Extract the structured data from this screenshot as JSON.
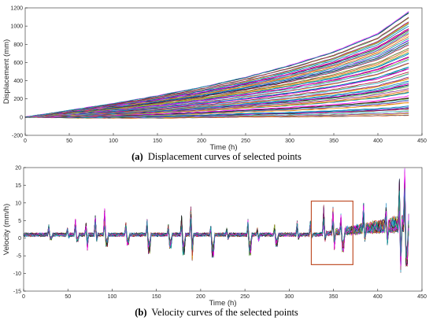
{
  "chart_data": [
    {
      "type": "line",
      "title": "",
      "caption": {
        "tag": "(a)",
        "text": "Displacement curves of selected points"
      },
      "xlabel": "Time (h)",
      "ylabel": "Displacement (mm)",
      "xlim": [
        0,
        450
      ],
      "ylim": [
        -200,
        1200
      ],
      "xticks": [
        0,
        50,
        100,
        150,
        200,
        250,
        300,
        350,
        400,
        450
      ],
      "yticks": [
        -200,
        0,
        200,
        400,
        600,
        800,
        1000,
        1200
      ],
      "grid": false,
      "legend": "none",
      "series_count_note_visible": false,
      "envelope": {
        "x": [
          0,
          50,
          100,
          150,
          200,
          250,
          300,
          350,
          400,
          435
        ],
        "max": [
          0,
          75,
          150,
          235,
          330,
          440,
          570,
          720,
          920,
          1160
        ],
        "min": [
          0,
          -10,
          -12,
          -12,
          -8,
          0,
          0,
          5,
          10,
          15
        ]
      },
      "series_count": 80
    },
    {
      "type": "line",
      "title": "",
      "caption": {
        "tag": "(b)",
        "text": "Velocity curves of the selected points"
      },
      "xlabel": "Time (h)",
      "ylabel": "Velocity (mm/h)",
      "xlim": [
        0,
        450
      ],
      "ylim": [
        -15,
        20
      ],
      "xticks": [
        0,
        50,
        100,
        150,
        200,
        250,
        300,
        350,
        400,
        450
      ],
      "yticks": [
        -15,
        -10,
        -5,
        0,
        5,
        10,
        15,
        20
      ],
      "grid": false,
      "legend": "none",
      "baseline": 1.0,
      "spikes": [
        {
          "x": 30,
          "up": 3,
          "down": -1.5
        },
        {
          "x": 50,
          "up": 2,
          "down": -1.0
        },
        {
          "x": 60,
          "up": 4.5,
          "down": -2.0
        },
        {
          "x": 71,
          "up": 3.5,
          "down": -4.5
        },
        {
          "x": 82,
          "up": 5.5,
          "down": -2.0
        },
        {
          "x": 93,
          "up": 7.5,
          "down": -3.5
        },
        {
          "x": 117,
          "up": 3.5,
          "down": -3.0
        },
        {
          "x": 141,
          "up": 4.5,
          "down": -5.5
        },
        {
          "x": 165,
          "up": 3.0,
          "down": -4.0
        },
        {
          "x": 180,
          "up": 5.5,
          "down": -6.0
        },
        {
          "x": 190,
          "up": 8.0,
          "down": -7.5
        },
        {
          "x": 213,
          "up": 2.5,
          "down": -6.5
        },
        {
          "x": 230,
          "up": 2.0,
          "down": -1.5
        },
        {
          "x": 255,
          "up": 4.5,
          "down": -6.0
        },
        {
          "x": 265,
          "up": 2.0,
          "down": -2.0
        },
        {
          "x": 285,
          "up": 3.0,
          "down": -3.5
        },
        {
          "x": 310,
          "up": 4.0,
          "down": -1.5
        },
        {
          "x": 325,
          "up": 4.0,
          "down": -1.0
        },
        {
          "x": 340,
          "up": 8.5,
          "down": -2.0
        },
        {
          "x": 350,
          "up": 8.0,
          "down": -4.5
        },
        {
          "x": 360,
          "up": 6.0,
          "down": -5.0
        },
        {
          "x": 385,
          "up": 9.0,
          "down": -2.0
        },
        {
          "x": 410,
          "up": 9.0,
          "down": -3.0
        },
        {
          "x": 425,
          "up": 16.0,
          "down": -11.0
        },
        {
          "x": 432,
          "up": 19.0,
          "down": -9.0
        }
      ],
      "highlight_box": {
        "x": [
          325,
          372
        ],
        "y": [
          -7.5,
          10.5
        ],
        "color": "#c0502a"
      },
      "series_count": 60
    }
  ],
  "colors": {
    "palette": [
      "#0072BD",
      "#D95319",
      "#EDB120",
      "#7E2F8E",
      "#77AC30",
      "#4DBEEE",
      "#A2142F",
      "#1a1a1a",
      "#ff00ff",
      "#00a0a0"
    ]
  }
}
